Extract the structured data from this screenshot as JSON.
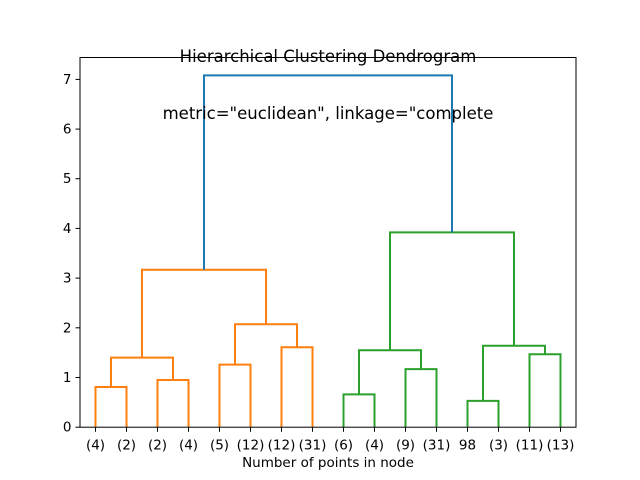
{
  "chart_data": {
    "type": "dendrogram",
    "title_line1": "Hierarchical Clustering Dendrogram",
    "title_line2": "metric=\"euclidean\", linkage=\"complete",
    "xlabel": "Number of points in node",
    "xlim": [
      0,
      160
    ],
    "ylim": [
      0,
      7.44
    ],
    "yticks": [
      0,
      1,
      2,
      3,
      4,
      5,
      6,
      7
    ],
    "grid": false,
    "legend": false,
    "leaf_positions": [
      5,
      15,
      25,
      35,
      45,
      55,
      65,
      75,
      85,
      95,
      105,
      115,
      125,
      135,
      145,
      155
    ],
    "leaf_labels": [
      "(4)",
      "(2)",
      "(2)",
      "(4)",
      "(5)",
      "(12)",
      "(12)",
      "(31)",
      "(6)",
      "(4)",
      "(9)",
      "(31)",
      "98",
      "(3)",
      "(11)",
      "(13)"
    ],
    "colors": {
      "root_link": "#1f77b4",
      "left_cluster": "#ff7f0e",
      "right_cluster": "#2ca02c",
      "axis": "#000000",
      "background": "#ffffff"
    },
    "links": [
      {
        "x1": 5,
        "y1": 0,
        "x2": 15,
        "y2": 0,
        "height": 0.81,
        "color": "#ff7f0e"
      },
      {
        "x1": 25,
        "y1": 0,
        "x2": 35,
        "y2": 0,
        "height": 0.95,
        "color": "#ff7f0e"
      },
      {
        "x1": 10,
        "y1": 0.81,
        "x2": 30,
        "y2": 0.95,
        "height": 1.4,
        "color": "#ff7f0e"
      },
      {
        "x1": 45,
        "y1": 0,
        "x2": 55,
        "y2": 0,
        "height": 1.26,
        "color": "#ff7f0e"
      },
      {
        "x1": 65,
        "y1": 0,
        "x2": 75,
        "y2": 0,
        "height": 1.61,
        "color": "#ff7f0e"
      },
      {
        "x1": 50,
        "y1": 1.26,
        "x2": 70,
        "y2": 1.61,
        "height": 2.07,
        "color": "#ff7f0e"
      },
      {
        "x1": 20,
        "y1": 1.4,
        "x2": 60,
        "y2": 2.07,
        "height": 3.17,
        "color": "#ff7f0e"
      },
      {
        "x1": 85,
        "y1": 0,
        "x2": 95,
        "y2": 0,
        "height": 0.66,
        "color": "#2ca02c"
      },
      {
        "x1": 105,
        "y1": 0,
        "x2": 115,
        "y2": 0,
        "height": 1.17,
        "color": "#2ca02c"
      },
      {
        "x1": 90,
        "y1": 0.66,
        "x2": 110,
        "y2": 1.17,
        "height": 1.55,
        "color": "#2ca02c"
      },
      {
        "x1": 125,
        "y1": 0,
        "x2": 135,
        "y2": 0,
        "height": 0.53,
        "color": "#2ca02c"
      },
      {
        "x1": 145,
        "y1": 0,
        "x2": 155,
        "y2": 0,
        "height": 1.47,
        "color": "#2ca02c"
      },
      {
        "x1": 130,
        "y1": 0.53,
        "x2": 150,
        "y2": 1.47,
        "height": 1.64,
        "color": "#2ca02c"
      },
      {
        "x1": 100,
        "y1": 1.55,
        "x2": 140,
        "y2": 1.64,
        "height": 3.92,
        "color": "#2ca02c"
      },
      {
        "x1": 40,
        "y1": 3.17,
        "x2": 120,
        "y2": 3.92,
        "height": 7.08,
        "color": "#1f77b4"
      }
    ]
  }
}
